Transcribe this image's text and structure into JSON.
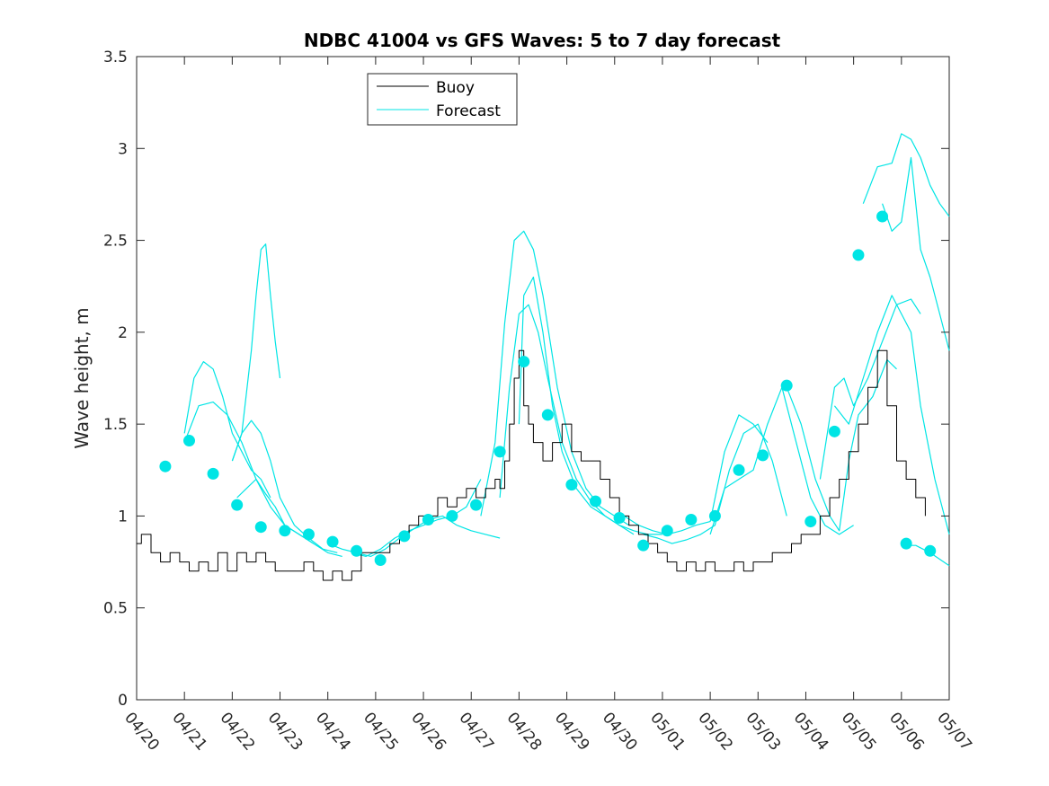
{
  "chart_data": {
    "type": "line",
    "title": "NDBC 41004 vs GFS Waves: 5 to 7 day forecast",
    "xlabel": "",
    "ylabel": "Wave height, m",
    "xlim": [
      0,
      17
    ],
    "ylim": [
      0,
      3.5
    ],
    "yticks": [
      0,
      0.5,
      1,
      1.5,
      2,
      2.5,
      3,
      3.5
    ],
    "ytick_labels": [
      "0",
      "0.5",
      "1",
      "1.5",
      "2",
      "2.5",
      "3",
      "3.5"
    ],
    "xticks": [
      0,
      1,
      2,
      3,
      4,
      5,
      6,
      7,
      8,
      9,
      10,
      11,
      12,
      13,
      14,
      15,
      16,
      17
    ],
    "xtick_labels": [
      "04/20",
      "04/21",
      "04/22",
      "04/23",
      "04/24",
      "04/25",
      "04/26",
      "04/27",
      "04/28",
      "04/29",
      "04/30",
      "05/01",
      "05/02",
      "05/03",
      "05/04",
      "05/05",
      "05/06",
      "05/07"
    ],
    "legend_position": "top-center",
    "grid": false,
    "series": [
      {
        "name": "Buoy",
        "color": "#000000",
        "x": [
          0,
          0.1,
          0.3,
          0.5,
          0.7,
          0.9,
          1.1,
          1.3,
          1.5,
          1.7,
          1.9,
          2.1,
          2.3,
          2.5,
          2.7,
          2.9,
          3.1,
          3.3,
          3.5,
          3.7,
          3.9,
          4.1,
          4.3,
          4.5,
          4.7,
          4.9,
          5.1,
          5.3,
          5.5,
          5.7,
          5.9,
          6.1,
          6.3,
          6.5,
          6.7,
          6.9,
          7.1,
          7.3,
          7.5,
          7.6,
          7.7,
          7.8,
          7.9,
          8.0,
          8.1,
          8.2,
          8.3,
          8.5,
          8.7,
          8.9,
          9.1,
          9.3,
          9.5,
          9.7,
          9.9,
          10.1,
          10.3,
          10.5,
          10.7,
          10.9,
          11.1,
          11.3,
          11.5,
          11.7,
          11.9,
          12.1,
          12.3,
          12.5,
          12.7,
          12.9,
          13.1,
          13.3,
          13.5,
          13.7,
          13.9,
          14.1,
          14.3,
          14.5,
          14.7,
          14.9,
          15.1,
          15.3,
          15.5,
          15.7,
          15.9,
          16.1,
          16.3,
          16.5
        ],
        "values": [
          0.85,
          0.9,
          0.8,
          0.75,
          0.8,
          0.75,
          0.7,
          0.75,
          0.7,
          0.8,
          0.7,
          0.8,
          0.75,
          0.8,
          0.75,
          0.7,
          0.7,
          0.7,
          0.75,
          0.7,
          0.65,
          0.7,
          0.65,
          0.7,
          0.8,
          0.8,
          0.8,
          0.85,
          0.9,
          0.95,
          1.0,
          1.0,
          1.1,
          1.05,
          1.1,
          1.15,
          1.1,
          1.15,
          1.2,
          1.15,
          1.3,
          1.5,
          1.75,
          1.9,
          1.6,
          1.5,
          1.4,
          1.3,
          1.4,
          1.5,
          1.35,
          1.3,
          1.3,
          1.2,
          1.1,
          1.0,
          0.95,
          0.9,
          0.85,
          0.8,
          0.75,
          0.7,
          0.75,
          0.7,
          0.75,
          0.7,
          0.7,
          0.75,
          0.7,
          0.75,
          0.75,
          0.8,
          0.8,
          0.85,
          0.9,
          0.9,
          1.0,
          1.1,
          1.2,
          1.35,
          1.5,
          1.7,
          1.9,
          1.6,
          1.3,
          1.2,
          1.1,
          1.0
        ]
      },
      {
        "name": "Forecast",
        "color": "#00e5e5",
        "x": [
          0.6,
          1.1,
          1.6,
          2.1,
          2.6,
          3.1,
          3.6,
          4.1,
          4.6,
          5.1,
          5.6,
          6.1,
          6.6,
          7.1,
          7.6,
          8.1,
          8.6,
          9.1,
          9.6,
          10.1,
          10.6,
          11.1,
          11.6,
          12.1,
          12.6,
          13.1,
          13.6,
          14.1,
          14.6,
          15.1,
          15.6,
          16.1,
          16.6
        ],
        "values": [
          1.27,
          1.41,
          1.23,
          1.06,
          0.94,
          0.92,
          0.9,
          0.86,
          0.81,
          0.76,
          0.89,
          0.98,
          1.0,
          1.06,
          1.35,
          1.84,
          1.55,
          1.17,
          1.08,
          0.99,
          0.84,
          0.92,
          0.98,
          1.0,
          1.25,
          1.33,
          1.71,
          0.97,
          1.46,
          2.42,
          2.63,
          0.85,
          0.81
        ]
      }
    ],
    "forecast_runs": [
      {
        "x": [
          1.0,
          1.2,
          1.4,
          1.6,
          1.8,
          2.0,
          2.2,
          2.4,
          2.6,
          2.8
        ],
        "values": [
          1.45,
          1.75,
          1.84,
          1.8,
          1.65,
          1.45,
          1.35,
          1.25,
          1.2,
          1.1
        ]
      },
      {
        "x": [
          1.0,
          1.3,
          1.6,
          1.9,
          2.2,
          2.5,
          2.8,
          3.1,
          3.4,
          3.7
        ],
        "values": [
          1.4,
          1.6,
          1.62,
          1.55,
          1.4,
          1.2,
          1.05,
          0.95,
          0.9,
          0.85
        ]
      },
      {
        "x": [
          2.0,
          2.2,
          2.4,
          2.6,
          2.8,
          3.0,
          3.3,
          3.6,
          3.9,
          4.2
        ],
        "values": [
          1.3,
          1.45,
          1.52,
          1.45,
          1.3,
          1.1,
          0.95,
          0.88,
          0.82,
          0.8
        ]
      },
      {
        "x": [
          2.1,
          2.3,
          2.5,
          2.7,
          2.9,
          3.1,
          3.4,
          3.7,
          4.0,
          4.3
        ],
        "values": [
          1.1,
          1.15,
          1.2,
          1.12,
          1.05,
          0.95,
          0.9,
          0.85,
          0.8,
          0.78
        ]
      },
      {
        "x": [
          2.0,
          2.2,
          2.4,
          2.5,
          2.6,
          2.7,
          2.8,
          2.9,
          3.0
        ],
        "values": [
          1.3,
          1.45,
          1.9,
          2.2,
          2.45,
          2.48,
          2.2,
          1.95,
          1.75
        ]
      },
      {
        "x": [
          4.0,
          4.3,
          4.6,
          4.9,
          5.2,
          5.5,
          5.8,
          6.1,
          6.4,
          6.7,
          7.0,
          7.3,
          7.6
        ],
        "values": [
          0.85,
          0.82,
          0.8,
          0.78,
          0.82,
          0.88,
          0.93,
          0.98,
          1.0,
          0.95,
          0.92,
          0.9,
          0.88
        ]
      },
      {
        "x": [
          4.5,
          4.8,
          5.1,
          5.4,
          5.7,
          6.0,
          6.3,
          6.6,
          6.9,
          7.2
        ],
        "values": [
          0.8,
          0.78,
          0.82,
          0.88,
          0.92,
          0.95,
          0.98,
          1.0,
          1.05,
          1.2
        ]
      },
      {
        "x": [
          7.2,
          7.5,
          7.7,
          7.9,
          8.1,
          8.3,
          8.5,
          8.8,
          9.1,
          9.4,
          9.7,
          10.0,
          10.3
        ],
        "values": [
          1.0,
          1.4,
          2.05,
          2.5,
          2.55,
          2.45,
          2.2,
          1.7,
          1.35,
          1.15,
          1.05,
          1.0,
          0.95
        ]
      },
      {
        "x": [
          7.6,
          7.8,
          8.0,
          8.2,
          8.4,
          8.6,
          8.9,
          9.2,
          9.5,
          9.8,
          10.1,
          10.4
        ],
        "values": [
          1.1,
          1.7,
          2.1,
          2.15,
          2.0,
          1.75,
          1.4,
          1.2,
          1.08,
          1.0,
          0.95,
          0.9
        ]
      },
      {
        "x": [
          8.0,
          8.1,
          8.3,
          8.5,
          8.7,
          8.9,
          9.2,
          9.5,
          9.8,
          10.1,
          10.4,
          10.7,
          11.0
        ],
        "values": [
          1.5,
          2.2,
          2.3,
          2.0,
          1.6,
          1.35,
          1.15,
          1.05,
          1.0,
          0.95,
          0.92,
          0.9,
          0.9
        ]
      },
      {
        "x": [
          10.2,
          10.5,
          10.8,
          11.1,
          11.4,
          11.7,
          12.0,
          12.3,
          12.6,
          12.9,
          13.2
        ],
        "values": [
          1.0,
          0.95,
          0.92,
          0.9,
          0.92,
          0.95,
          0.97,
          1.35,
          1.55,
          1.5,
          1.4
        ]
      },
      {
        "x": [
          10.6,
          10.9,
          11.2,
          11.5,
          11.8,
          12.1,
          12.4,
          12.7,
          13.0,
          13.3,
          13.5,
          13.6
        ],
        "values": [
          0.9,
          0.88,
          0.85,
          0.87,
          0.9,
          0.95,
          1.25,
          1.45,
          1.5,
          1.3,
          1.1,
          1.0
        ]
      },
      {
        "x": [
          12.0,
          12.3,
          12.6,
          12.9,
          13.2,
          13.5,
          13.8,
          14.1,
          14.4,
          14.7,
          15.0
        ],
        "values": [
          0.9,
          1.15,
          1.2,
          1.25,
          1.5,
          1.7,
          1.4,
          1.1,
          0.95,
          0.9,
          0.95
        ]
      },
      {
        "x": [
          13.6,
          13.9,
          14.2,
          14.5,
          14.7,
          14.9,
          15.1,
          15.4,
          15.7,
          15.9
        ],
        "values": [
          1.7,
          1.5,
          1.2,
          1.0,
          0.92,
          1.3,
          1.55,
          1.65,
          1.85,
          1.8
        ]
      },
      {
        "x": [
          14.3,
          14.6,
          14.8,
          15.0,
          15.3,
          15.6,
          15.9,
          16.2,
          16.4
        ],
        "values": [
          1.2,
          1.7,
          1.75,
          1.6,
          1.75,
          1.95,
          2.15,
          2.18,
          2.1
        ]
      },
      {
        "x": [
          14.6,
          14.9,
          15.2,
          15.5,
          15.8,
          16.0,
          16.2,
          16.4,
          16.7,
          17.0
        ],
        "values": [
          1.6,
          1.5,
          1.75,
          2.0,
          2.2,
          2.1,
          2.0,
          1.6,
          1.2,
          0.9
        ]
      },
      {
        "x": [
          15.2,
          15.5,
          15.8,
          16.0,
          16.2,
          16.4,
          16.6,
          16.8,
          17.0
        ],
        "values": [
          2.7,
          2.9,
          2.92,
          3.08,
          3.05,
          2.95,
          2.8,
          2.7,
          2.63
        ]
      },
      {
        "x": [
          15.6,
          15.8,
          16.0,
          16.2,
          16.4,
          16.6,
          16.8,
          17.0
        ],
        "values": [
          2.7,
          2.55,
          2.6,
          2.95,
          2.45,
          2.3,
          2.1,
          1.9
        ]
      },
      {
        "x": [
          16.0,
          16.3,
          16.6,
          17.0
        ],
        "values": [
          0.84,
          0.84,
          0.8,
          0.73
        ]
      }
    ]
  }
}
